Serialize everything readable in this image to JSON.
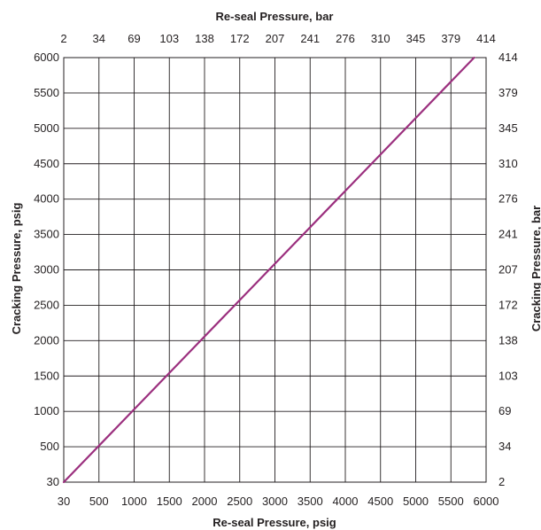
{
  "chart_data": {
    "type": "line",
    "title": "",
    "xlabel": "Re-seal Pressure, psig",
    "ylabel": "Cracking Pressure, psig",
    "x2label": "Re-seal Pressure, bar",
    "y2label": "Cracking Pressure, bar",
    "x_ticks": [
      "30",
      "500",
      "1000",
      "1500",
      "2000",
      "2500",
      "3000",
      "3500",
      "4000",
      "4500",
      "5000",
      "5500",
      "6000"
    ],
    "x2_ticks": [
      "2",
      "34",
      "69",
      "103",
      "138",
      "172",
      "207",
      "241",
      "276",
      "310",
      "345",
      "379",
      "414"
    ],
    "y_ticks": [
      "30",
      "500",
      "1000",
      "1500",
      "2000",
      "2500",
      "3000",
      "3500",
      "4000",
      "4500",
      "5000",
      "5500",
      "6000"
    ],
    "y2_ticks": [
      "2",
      "34",
      "69",
      "103",
      "138",
      "172",
      "207",
      "241",
      "276",
      "310",
      "345",
      "379",
      "414"
    ],
    "xlim": [
      0,
      6000
    ],
    "ylim": [
      0,
      6000
    ],
    "grid": true,
    "series": [
      {
        "color": "#9b2f7e",
        "x": [
          30,
          5830
        ],
        "y": [
          30,
          6000
        ]
      }
    ],
    "colors": {
      "line": "#9b2f7e",
      "grid": "#231f20",
      "text": "#231f20"
    }
  }
}
